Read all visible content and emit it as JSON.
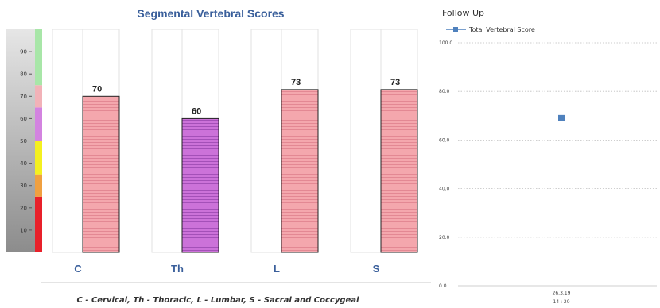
{
  "left_title": "Segmental Vertebral Scores",
  "caption": "C - Cervical, Th - Thoracic, L - Lumbar, S - Sacral and Coccygeal",
  "right_title": "Follow Up",
  "chart_data": [
    {
      "type": "bar",
      "title": "Segmental Vertebral Scores",
      "categories": [
        "C",
        "Th",
        "L",
        "S"
      ],
      "values": [
        70,
        60,
        73,
        73
      ],
      "value_labels": [
        "70",
        "60",
        "73",
        "73"
      ],
      "bar_colors": [
        "#f4a7ad",
        "#c86fd6",
        "#f4a7ad",
        "#f4a7ad"
      ],
      "ylim": [
        0,
        100
      ],
      "yticks": [
        10,
        20,
        30,
        40,
        50,
        60,
        70,
        80,
        90
      ],
      "ytick_labels": [
        "10",
        "20",
        "30",
        "40",
        "50",
        "60",
        "70",
        "80",
        "90"
      ],
      "color_scale": [
        {
          "from": 0,
          "to": 25,
          "color": "#e8202a"
        },
        {
          "from": 25,
          "to": 35,
          "color": "#f0a040"
        },
        {
          "from": 35,
          "to": 50,
          "color": "#f4f020"
        },
        {
          "from": 50,
          "to": 65,
          "color": "#d383e0"
        },
        {
          "from": 65,
          "to": 75,
          "color": "#f2b2b8"
        },
        {
          "from": 75,
          "to": 100,
          "color": "#a8e6a8"
        }
      ]
    },
    {
      "type": "scatter",
      "title": "Follow Up",
      "series": [
        {
          "name": "Total Vertebral Score",
          "color": "#4f81bd",
          "points": [
            {
              "x": "26.3.19 14 : 20",
              "y": 69
            }
          ]
        }
      ],
      "ylim": [
        0,
        100
      ],
      "yticks": [
        0,
        20,
        40,
        60,
        80,
        100
      ],
      "ytick_labels": [
        "0.0",
        "20.0",
        "40.0",
        "60.0",
        "80.0",
        "100.0"
      ],
      "x_tick_labels": [
        {
          "line1": "26.3.19",
          "line2": "14 : 20"
        }
      ],
      "grid": true,
      "legend": "top-left"
    }
  ]
}
